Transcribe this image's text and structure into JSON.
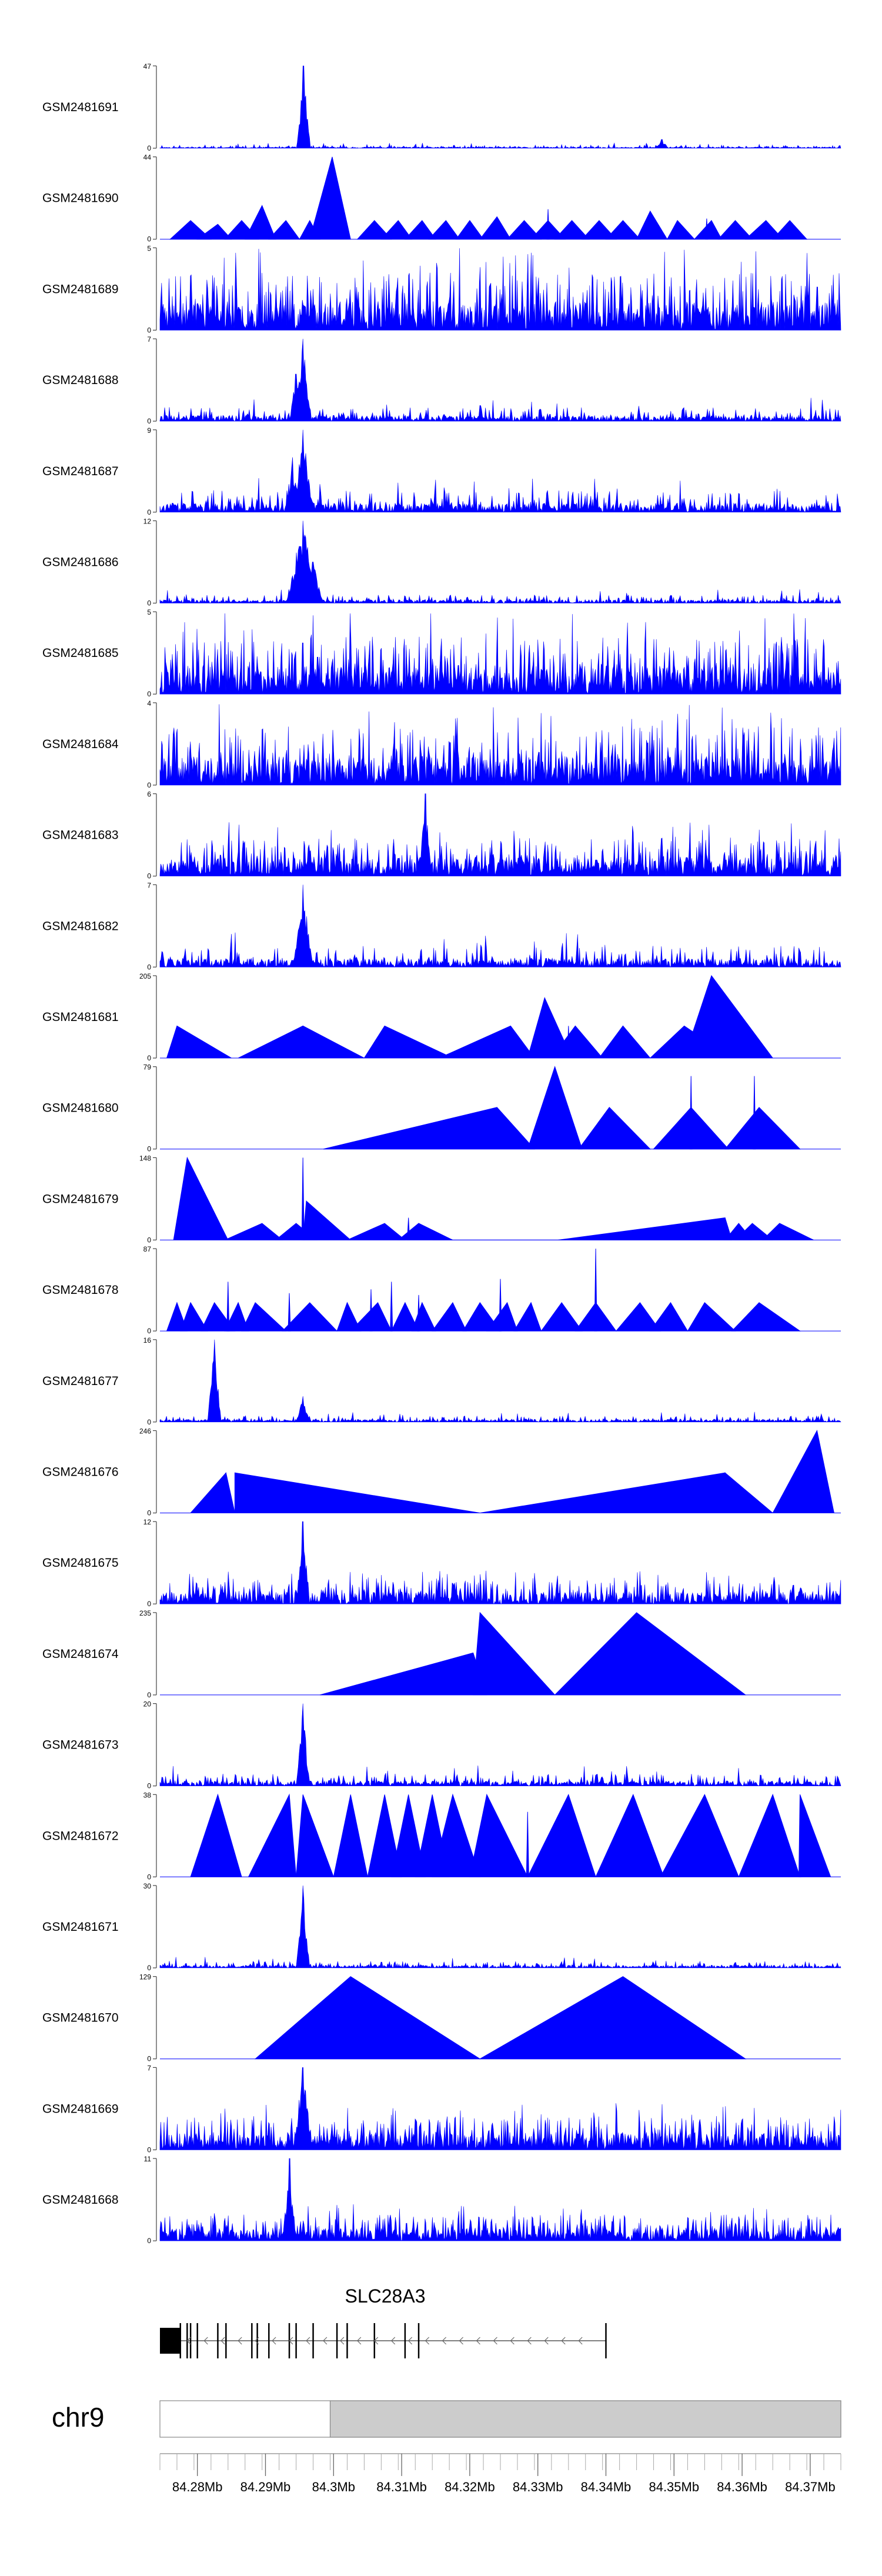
{
  "chart_data": {
    "type": "area",
    "fill_color": "#0000ff",
    "xlim_mb": [
      84.2745,
      84.3745
    ],
    "tracks": [
      {
        "name": "GSM2481691",
        "ymax": 47,
        "pattern": "noise",
        "peaks": [
          [
            84.2956,
            47,
            1
          ],
          [
            84.3482,
            5,
            1
          ]
        ],
        "noise": 3,
        "seed": 11
      },
      {
        "name": "GSM2481690",
        "ymax": 44,
        "pattern": "tri",
        "tris": [
          [
            84.276,
            84.279,
            84.282,
            10
          ],
          [
            84.28,
            84.283,
            84.285,
            8
          ],
          [
            84.284,
            84.2865,
            84.289,
            10
          ],
          [
            84.287,
            84.2895,
            84.2915,
            18
          ],
          [
            84.2905,
            84.293,
            84.295,
            10
          ],
          [
            84.295,
            84.2965,
            84.298,
            10
          ],
          [
            84.2965,
            84.2998,
            84.3025,
            44
          ],
          [
            84.3035,
            84.306,
            84.3085,
            10
          ],
          [
            84.307,
            84.3095,
            84.3115,
            10
          ],
          [
            84.3105,
            84.313,
            84.315,
            10
          ],
          [
            84.314,
            84.3165,
            84.3185,
            10
          ],
          [
            84.318,
            84.32,
            84.322,
            10
          ],
          [
            84.3215,
            84.324,
            84.326,
            12
          ],
          [
            84.3255,
            84.328,
            84.3305,
            10
          ],
          [
            84.329,
            84.3315,
            84.334,
            10
          ],
          [
            84.3325,
            84.335,
            84.3375,
            10
          ],
          [
            84.3365,
            84.339,
            84.3415,
            10
          ],
          [
            84.34,
            84.3425,
            84.345,
            10
          ],
          [
            84.3445,
            84.3465,
            84.349,
            15
          ],
          [
            84.349,
            84.3505,
            84.353,
            10
          ],
          [
            84.353,
            84.3555,
            84.357,
            10
          ],
          [
            84.3565,
            84.359,
            84.3615,
            10
          ],
          [
            84.3605,
            84.3635,
            84.366,
            10
          ],
          [
            84.3645,
            84.367,
            84.3695,
            10
          ]
        ],
        "spikes": [
          [
            84.3315,
            16
          ],
          [
            84.3548,
            11
          ]
        ]
      },
      {
        "name": "GSM2481689",
        "ymax": 5,
        "pattern": "noise",
        "peaks": [],
        "noise": 5,
        "seed": 23,
        "density": "high"
      },
      {
        "name": "GSM2481688",
        "ymax": 7,
        "pattern": "noise",
        "peaks": [
          [
            84.2955,
            7,
            1.2
          ],
          [
            84.2945,
            4,
            1
          ]
        ],
        "noise": 2,
        "seed": 31
      },
      {
        "name": "GSM2481687",
        "ymax": 9,
        "pattern": "noise",
        "peaks": [
          [
            84.2955,
            9,
            1.5
          ],
          [
            84.294,
            6,
            1
          ]
        ],
        "noise": 4,
        "seed": 37
      },
      {
        "name": "GSM2481686",
        "ymax": 12,
        "pattern": "noise",
        "peaks": [
          [
            84.2955,
            12,
            2.5
          ],
          [
            84.297,
            6,
            1.5
          ]
        ],
        "noise": 2,
        "seed": 41
      },
      {
        "name": "GSM2481685",
        "ymax": 5,
        "pattern": "noise",
        "peaks": [],
        "noise": 5,
        "seed": 43,
        "density": "high"
      },
      {
        "name": "GSM2481684",
        "ymax": 4,
        "pattern": "noise",
        "peaks": [],
        "noise": 4,
        "seed": 47,
        "density": "high"
      },
      {
        "name": "GSM2481683",
        "ymax": 6,
        "pattern": "noise",
        "peaks": [
          [
            84.3135,
            6,
            1
          ]
        ],
        "noise": 4,
        "seed": 53,
        "density": "high"
      },
      {
        "name": "GSM2481682",
        "ymax": 7,
        "pattern": "noise",
        "peaks": [
          [
            84.2955,
            7,
            1.5
          ]
        ],
        "noise": 3,
        "seed": 59
      },
      {
        "name": "GSM2481681",
        "ymax": 205,
        "pattern": "tri",
        "tris": [
          [
            84.2755,
            84.277,
            84.285,
            80
          ],
          [
            84.286,
            84.2955,
            84.3045,
            80
          ],
          [
            84.3045,
            84.3075,
            84.3175,
            80
          ],
          [
            84.3155,
            84.326,
            84.3295,
            80
          ],
          [
            84.3285,
            84.331,
            84.335,
            150
          ],
          [
            84.332,
            84.3355,
            84.3395,
            80
          ],
          [
            84.339,
            84.3425,
            84.3465,
            80
          ],
          [
            84.3465,
            84.3515,
            84.3585,
            80
          ],
          [
            84.3515,
            84.3555,
            84.3645,
            205
          ]
        ],
        "spikes": [
          [
            84.3345,
            80
          ]
        ]
      },
      {
        "name": "GSM2481680",
        "ymax": 79,
        "pattern": "tri",
        "tris": [
          [
            84.2985,
            84.324,
            84.3295,
            40
          ],
          [
            84.3285,
            84.3325,
            84.3365,
            79
          ],
          [
            84.336,
            84.3405,
            84.3465,
            40
          ],
          [
            84.347,
            84.3525,
            84.358,
            40
          ],
          [
            84.3575,
            84.3625,
            84.3685,
            40
          ]
        ],
        "spikes": [
          [
            84.3525,
            70
          ],
          [
            84.3618,
            70
          ]
        ]
      },
      {
        "name": "GSM2481679",
        "ymax": 148,
        "pattern": "tri",
        "tris": [
          [
            84.2765,
            84.2785,
            84.2845,
            148
          ],
          [
            84.284,
            84.2895,
            84.2925,
            30
          ],
          [
            84.2915,
            84.2945,
            84.2975,
            30
          ],
          [
            84.2955,
            84.296,
            84.3025,
            70
          ],
          [
            84.302,
            84.3075,
            84.3105,
            30
          ],
          [
            84.3095,
            84.3125,
            84.3175,
            30
          ],
          [
            84.3145,
            84.3575,
            84.3585,
            0
          ],
          [
            84.333,
            84.3575,
            84.3585,
            40
          ],
          [
            84.3575,
            84.3595,
            84.3615,
            30
          ],
          [
            84.359,
            84.3615,
            84.3645,
            30
          ],
          [
            84.363,
            84.3655,
            84.3705,
            30
          ]
        ],
        "spikes": [
          [
            84.2955,
            148
          ],
          [
            84.311,
            40
          ],
          [
            84.3575,
            40
          ]
        ]
      },
      {
        "name": "GSM2481678",
        "ymax": 87,
        "pattern": "tri",
        "tris": [
          [
            84.2755,
            84.277,
            84.2785,
            30
          ],
          [
            84.2775,
            84.279,
            84.2815,
            30
          ],
          [
            84.2805,
            84.2825,
            84.2855,
            30
          ],
          [
            84.284,
            84.286,
            84.2875,
            30
          ],
          [
            84.2865,
            84.2885,
            84.293,
            30
          ],
          [
            84.2925,
            84.2965,
            84.3005,
            30
          ],
          [
            84.3005,
            84.302,
            84.304,
            30
          ],
          [
            84.3025,
            84.3065,
            84.3085,
            30
          ],
          [
            84.3085,
            84.3105,
            84.3125,
            30
          ],
          [
            84.3115,
            84.313,
            84.315,
            30
          ],
          [
            84.3145,
            84.3175,
            84.3195,
            30
          ],
          [
            84.319,
            84.3215,
            84.3245,
            30
          ],
          [
            84.3225,
            84.3255,
            84.327,
            30
          ],
          [
            84.3265,
            84.329,
            84.3305,
            30
          ],
          [
            84.3305,
            84.3335,
            84.3365,
            30
          ],
          [
            84.3355,
            84.3385,
            84.3415,
            30
          ],
          [
            84.3415,
            84.345,
            84.348,
            30
          ],
          [
            84.3465,
            84.3495,
            84.352,
            30
          ],
          [
            84.352,
            84.3545,
            84.359,
            30
          ],
          [
            84.3585,
            84.3625,
            84.3685,
            30
          ]
        ],
        "spikes": [
          [
            84.2845,
            52
          ],
          [
            84.2935,
            40
          ],
          [
            84.3055,
            44
          ],
          [
            84.3085,
            52
          ],
          [
            84.3125,
            38
          ],
          [
            84.3245,
            55
          ],
          [
            84.3385,
            87
          ]
        ]
      },
      {
        "name": "GSM2481677",
        "ymax": 16,
        "pattern": "noise",
        "peaks": [
          [
            84.2825,
            16,
            1
          ],
          [
            84.2955,
            5,
            1
          ]
        ],
        "noise": 2,
        "seed": 61
      },
      {
        "name": "GSM2481676",
        "ymax": 246,
        "pattern": "tri",
        "tris": [
          [
            84.279,
            84.2842,
            84.2855,
            120
          ],
          [
            84.2855,
            84.2855,
            84.3215,
            120
          ],
          [
            84.3215,
            84.3575,
            84.3575,
            120
          ],
          [
            84.3575,
            84.3575,
            84.3645,
            120
          ],
          [
            84.3645,
            84.371,
            84.3735,
            246
          ]
        ],
        "spikes": []
      },
      {
        "name": "GSM2481675",
        "ymax": 12,
        "pattern": "noise",
        "peaks": [
          [
            84.2955,
            12,
            1
          ]
        ],
        "noise": 5,
        "seed": 67,
        "density": "high"
      },
      {
        "name": "GSM2481674",
        "ymax": 235,
        "pattern": "tri",
        "tris": [
          [
            84.298,
            84.3205,
            84.3225,
            120
          ],
          [
            84.3205,
            84.3215,
            84.3325,
            235
          ],
          [
            84.3325,
            84.3445,
            84.3605,
            235
          ]
        ],
        "spikes": []
      },
      {
        "name": "GSM2481673",
        "ymax": 20,
        "pattern": "noise",
        "peaks": [
          [
            84.2955,
            20,
            1
          ]
        ],
        "noise": 5,
        "seed": 71
      },
      {
        "name": "GSM2481672",
        "ymax": 38,
        "pattern": "tri",
        "tris": [
          [
            84.279,
            84.283,
            84.2865,
            38
          ],
          [
            84.2875,
            84.2935,
            84.2945,
            38
          ],
          [
            84.2945,
            84.2955,
            84.3,
            38
          ],
          [
            84.3,
            84.3025,
            84.305,
            38
          ],
          [
            84.305,
            84.3075,
            84.31,
            38
          ],
          [
            84.3085,
            84.311,
            84.3135,
            38
          ],
          [
            84.312,
            84.3145,
            84.317,
            38
          ],
          [
            84.3145,
            84.3175,
            84.3215,
            38
          ],
          [
            84.32,
            84.3225,
            84.3285,
            38
          ],
          [
            84.3285,
            84.3345,
            84.3385,
            38
          ],
          [
            84.3385,
            84.344,
            84.3485,
            38
          ],
          [
            84.348,
            84.3545,
            84.3595,
            38
          ],
          [
            84.3595,
            84.3645,
            84.3685,
            38
          ],
          [
            84.3685,
            84.3685,
            84.373,
            38
          ]
        ],
        "spikes": [
          [
            84.3285,
            30
          ],
          [
            84.3685,
            38
          ]
        ]
      },
      {
        "name": "GSM2481671",
        "ymax": 30,
        "pattern": "noise",
        "peaks": [
          [
            84.2955,
            30,
            1
          ]
        ],
        "noise": 4,
        "seed": 73
      },
      {
        "name": "GSM2481670",
        "ymax": 129,
        "pattern": "tri",
        "tris": [
          [
            84.2885,
            84.3025,
            84.3215,
            129
          ],
          [
            84.3215,
            84.3425,
            84.3605,
            129
          ]
        ],
        "spikes": []
      },
      {
        "name": "GSM2481669",
        "ymax": 7,
        "pattern": "noise",
        "peaks": [
          [
            84.2955,
            7,
            1.5
          ]
        ],
        "noise": 4,
        "seed": 79,
        "density": "high"
      },
      {
        "name": "GSM2481668",
        "ymax": 11,
        "pattern": "noise",
        "peaks": [
          [
            84.2935,
            11,
            1
          ]
        ],
        "noise": 5,
        "seed": 83,
        "density": "high"
      }
    ],
    "gene": {
      "name": "SLC28A3",
      "strand": "-",
      "start_mb": 84.2745,
      "end_mb": 84.34,
      "utr_block": [
        84.2745,
        84.2775
      ],
      "exons_mb": [
        84.2775,
        84.2785,
        84.279,
        84.28,
        84.283,
        84.2842,
        84.288,
        84.2888,
        84.2905,
        84.2935,
        84.2945,
        84.297,
        84.3005,
        84.302,
        84.306,
        84.3105,
        84.3125,
        84.34
      ]
    },
    "chromosome": {
      "name": "chr9",
      "region_highlight_start_mb": 84.2995,
      "axis_ticks_mb": [
        84.28,
        84.29,
        84.3,
        84.31,
        84.32,
        84.33,
        84.34,
        84.35,
        84.36,
        84.37
      ],
      "axis_tick_labels": [
        "84.28Mb",
        "84.29Mb",
        "84.3Mb",
        "84.31Mb",
        "84.32Mb",
        "84.33Mb",
        "84.34Mb",
        "84.35Mb",
        "84.36Mb",
        "84.37Mb"
      ]
    }
  }
}
